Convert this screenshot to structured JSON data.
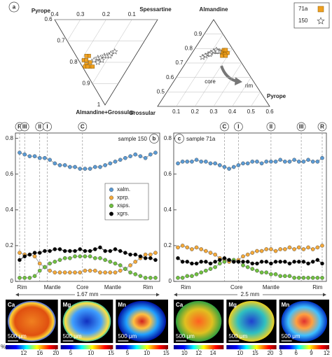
{
  "chart_data": [
    {
      "type": "ternary",
      "orientation": "inverted",
      "panel_label": "a",
      "lim": 0.4,
      "apex_labels": [
        "Pyrope",
        "Spessartine",
        "Almandine+Grossular"
      ],
      "top_ticks": [
        0.4,
        0.3,
        0.2,
        0.1
      ],
      "left_ticks": [
        0.6,
        0.7,
        0.8,
        0.9,
        1
      ],
      "series": [
        {
          "name": "71a",
          "color": "#f0a020",
          "marker": "square",
          "pyrope": [
            0.19,
            0.18,
            0.17,
            0.16,
            0.18,
            0.15,
            0.17,
            0.16,
            0.14,
            0.19
          ],
          "spessartine": [
            0.02,
            0.03,
            0.02,
            0.04,
            0.05,
            0.03,
            0.01,
            0.02,
            0.04,
            0.04
          ]
        },
        {
          "name": "150",
          "color": "#ffffff",
          "marker": "star",
          "pyrope": [
            0.15,
            0.14,
            0.13,
            0.12,
            0.11,
            0.1,
            0.09,
            0.12,
            0.1,
            0.13
          ],
          "spessartine": [
            0.06,
            0.08,
            0.09,
            0.11,
            0.12,
            0.14,
            0.16,
            0.09,
            0.13,
            0.07
          ]
        }
      ]
    },
    {
      "type": "ternary",
      "orientation": "upright",
      "lim": 0.6,
      "apex_labels": [
        "Almandine",
        "Pyrope",
        "Grossular"
      ],
      "bottom_ticks": [
        0.1,
        0.2,
        0.3,
        0.4,
        0.5,
        0.6
      ],
      "left_ticks": [
        0.9,
        0.8,
        0.7,
        0.6,
        0.5
      ],
      "annotations": [
        "core",
        "rim"
      ],
      "series": [
        {
          "color": "#f0a020",
          "marker": "square",
          "pyrope": [
            0.17,
            0.18,
            0.16,
            0.19,
            0.17,
            0.15,
            0.18,
            0.16,
            0.17,
            0.19
          ],
          "grossular": [
            0.06,
            0.05,
            0.07,
            0.04,
            0.08,
            0.07,
            0.06,
            0.05,
            0.04,
            0.06
          ]
        },
        {
          "color": "#ffffff",
          "marker": "star",
          "pyrope": [
            0.14,
            0.12,
            0.11,
            0.1,
            0.09,
            0.08,
            0.07,
            0.12,
            0.1,
            0.13
          ],
          "grossular": [
            0.08,
            0.1,
            0.11,
            0.13,
            0.15,
            0.17,
            0.19,
            0.09,
            0.14,
            0.09
          ]
        }
      ]
    },
    {
      "type": "profile",
      "panel_label": "b",
      "title": "sample 150",
      "title_position": "top-right",
      "ylim": [
        0,
        0.83
      ],
      "yticks": [
        0,
        0.2,
        0.4,
        0.6,
        0.8
      ],
      "legend": "center-right",
      "markers": [
        {
          "label": "R",
          "x": 0
        },
        {
          "label": "III",
          "x": 1
        },
        {
          "label": "II",
          "x": 4
        },
        {
          "label": "I",
          "x": 5.5
        },
        {
          "label": "C",
          "x": 12.5
        }
      ],
      "zones": [
        {
          "label": "Rim",
          "x": 0.5
        },
        {
          "label": "Mantle",
          "x": 6.5
        },
        {
          "label": "Core",
          "x": 12.5
        },
        {
          "label": "Mantle",
          "x": 18.5
        },
        {
          "label": "Rim",
          "x": 25.5
        }
      ],
      "scale": "1.67 mm",
      "series": [
        {
          "name": "xalm.",
          "color": "#5b9bd5",
          "values": [
            0.72,
            0.71,
            0.7,
            0.7,
            0.69,
            0.69,
            0.68,
            0.66,
            0.65,
            0.65,
            0.64,
            0.64,
            0.63,
            0.63,
            0.63,
            0.64,
            0.64,
            0.65,
            0.66,
            0.67,
            0.68,
            0.69,
            0.7,
            0.71,
            0.7,
            0.69,
            0.71,
            0.72
          ]
        },
        {
          "name": "xprp.",
          "color": "#f4a93a",
          "values": [
            0.16,
            0.15,
            0.15,
            0.14,
            0.1,
            0.08,
            0.06,
            0.05,
            0.05,
            0.05,
            0.05,
            0.05,
            0.05,
            0.06,
            0.06,
            0.06,
            0.05,
            0.05,
            0.05,
            0.05,
            0.06,
            0.07,
            0.09,
            0.11,
            0.13,
            0.15,
            0.15,
            0.16
          ]
        },
        {
          "name": "xsps.",
          "color": "#70c040",
          "values": [
            0.02,
            0.02,
            0.02,
            0.03,
            0.06,
            0.08,
            0.1,
            0.11,
            0.12,
            0.13,
            0.13,
            0.14,
            0.14,
            0.14,
            0.14,
            0.13,
            0.13,
            0.12,
            0.11,
            0.1,
            0.09,
            0.07,
            0.05,
            0.04,
            0.03,
            0.02,
            0.02,
            0.02
          ]
        },
        {
          "name": "xgrs.",
          "color": "#000000",
          "values": [
            0.12,
            0.14,
            0.15,
            0.16,
            0.16,
            0.17,
            0.17,
            0.18,
            0.18,
            0.17,
            0.17,
            0.17,
            0.18,
            0.17,
            0.17,
            0.18,
            0.19,
            0.17,
            0.17,
            0.18,
            0.17,
            0.16,
            0.15,
            0.15,
            0.14,
            0.13,
            0.13,
            0.12
          ]
        }
      ]
    },
    {
      "type": "profile",
      "panel_label": "c",
      "title": "sample 71a",
      "title_position": "top-left",
      "ylim": [
        0,
        0.83
      ],
      "yticks": [
        0,
        0.2,
        0.4,
        0.6,
        0.8
      ],
      "markers": [
        {
          "label": "C",
          "x": 10
        },
        {
          "label": "I",
          "x": 13
        },
        {
          "label": "II",
          "x": 20
        },
        {
          "label": "III",
          "x": 26.5
        },
        {
          "label": "R",
          "x": 31
        }
      ],
      "zones": [
        {
          "label": "Rim",
          "x": 1.7
        },
        {
          "label": "Core",
          "x": 12.6
        },
        {
          "label": "Mantle",
          "x": 20
        },
        {
          "label": "Rim",
          "x": 30
        }
      ],
      "scale": "2.5 mm",
      "series": [
        {
          "color": "#5b9bd5",
          "values": [
            0.66,
            0.67,
            0.67,
            0.67,
            0.68,
            0.67,
            0.67,
            0.66,
            0.66,
            0.65,
            0.64,
            0.63,
            0.64,
            0.65,
            0.66,
            0.66,
            0.67,
            0.67,
            0.66,
            0.67,
            0.67,
            0.67,
            0.68,
            0.67,
            0.67,
            0.68,
            0.67,
            0.67,
            0.68,
            0.67,
            0.67,
            0.69
          ]
        },
        {
          "color": "#f4a93a",
          "values": [
            0.19,
            0.2,
            0.19,
            0.18,
            0.19,
            0.18,
            0.17,
            0.16,
            0.15,
            0.13,
            0.12,
            0.11,
            0.11,
            0.12,
            0.14,
            0.15,
            0.16,
            0.17,
            0.17,
            0.18,
            0.18,
            0.17,
            0.18,
            0.18,
            0.19,
            0.18,
            0.19,
            0.18,
            0.19,
            0.18,
            0.19,
            0.2
          ]
        },
        {
          "color": "#70c040",
          "values": [
            0.02,
            0.02,
            0.03,
            0.03,
            0.04,
            0.05,
            0.06,
            0.07,
            0.08,
            0.1,
            0.11,
            0.12,
            0.12,
            0.11,
            0.09,
            0.08,
            0.07,
            0.06,
            0.05,
            0.05,
            0.04,
            0.04,
            0.03,
            0.03,
            0.03,
            0.02,
            0.02,
            0.02,
            0.02,
            0.02,
            0.02,
            0.02
          ]
        },
        {
          "color": "#000000",
          "values": [
            0.13,
            0.11,
            0.11,
            0.1,
            0.1,
            0.11,
            0.11,
            0.1,
            0.11,
            0.12,
            0.13,
            0.12,
            0.11,
            0.11,
            0.11,
            0.11,
            0.1,
            0.1,
            0.11,
            0.11,
            0.1,
            0.11,
            0.11,
            0.11,
            0.1,
            0.11,
            0.11,
            0.11,
            0.1,
            0.11,
            0.12,
            0.1
          ]
        }
      ]
    },
    {
      "type": "maps",
      "unit": "%",
      "maps": [
        {
          "element": "Ca",
          "scale": "500 μm",
          "lim": [
            7.5,
            20.5
          ],
          "ticks": [
            12,
            16,
            20
          ]
        },
        {
          "element": "Mg",
          "scale": "500 μm",
          "lim": [
            2.5,
            15.5
          ],
          "ticks": [
            5,
            10,
            15
          ]
        },
        {
          "element": "Mn",
          "scale": "500 μm",
          "lim": [
            2,
            15.5
          ],
          "ticks": [
            5,
            10,
            15
          ]
        }
      ]
    },
    {
      "type": "maps",
      "maps": [
        {
          "element": "Ca",
          "scale": "500 μm",
          "lim": [
            8.5,
            15.5
          ],
          "ticks": [
            10,
            12,
            14
          ]
        },
        {
          "element": "Mg",
          "scale": "500 μm",
          "lim": [
            5.5,
            22
          ],
          "ticks": [
            10,
            15,
            20
          ]
        },
        {
          "element": "Mn",
          "scale": "500 μm",
          "lim": [
            2.7,
            12.5
          ],
          "ticks": [
            3,
            6,
            9,
            12
          ]
        }
      ]
    }
  ]
}
